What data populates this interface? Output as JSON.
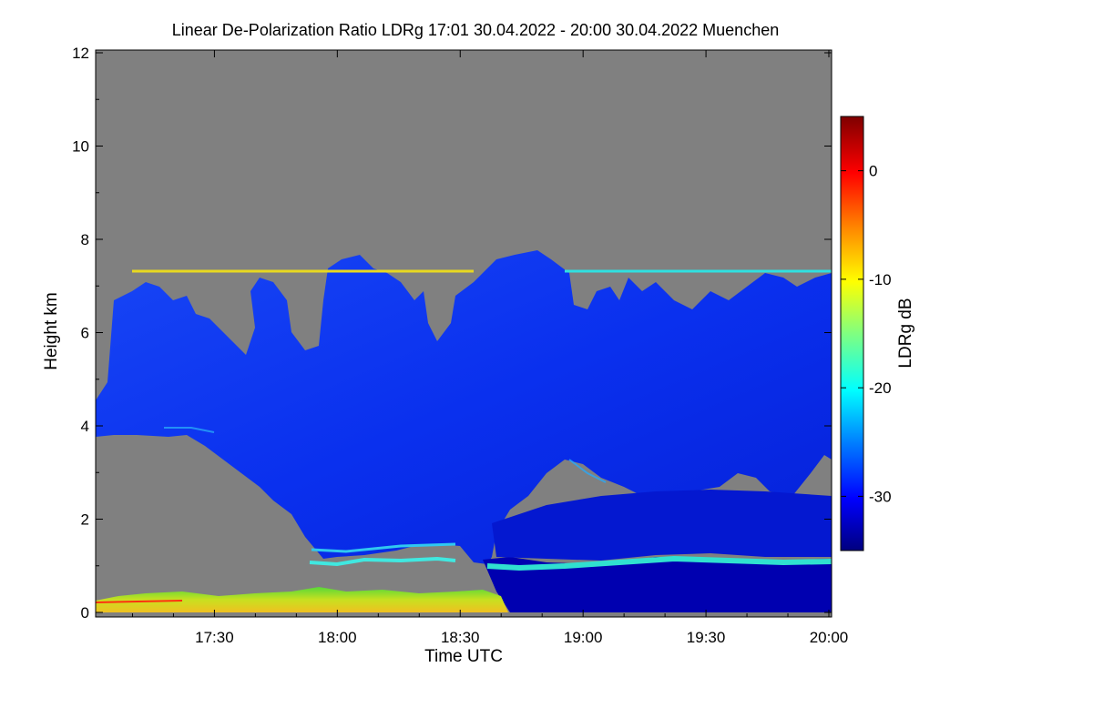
{
  "chart_data": {
    "type": "heatmap",
    "title": "Linear De-Polarization Ratio LDRg   17:01 30.04.2022 - 20:00 30.04.2022 Muenchen",
    "xlabel": "Time UTC",
    "ylabel": "Height km",
    "x_range": [
      "17:01",
      "20:00"
    ],
    "y_range": [
      0,
      12
    ],
    "x_ticks": [
      "17:30",
      "18:00",
      "18:30",
      "19:00",
      "19:30",
      "20:00"
    ],
    "y_ticks": [
      "0",
      "2",
      "4",
      "6",
      "8",
      "10",
      "12"
    ],
    "colorbar": {
      "label": "LDRg dB",
      "range": [
        -35,
        5
      ],
      "ticks": [
        "0",
        "-10",
        "-20",
        "-30"
      ],
      "colors": [
        "#00007f",
        "#0000ff",
        "#0080ff",
        "#00ffff",
        "#80ff80",
        "#ffff00",
        "#ff8000",
        "#ff0000",
        "#7f0000"
      ]
    },
    "no_signal_color": "#808080",
    "features": {
      "cirrus_top_km": [
        5.5,
        7.3
      ],
      "cirrus_base_km": [
        1.2,
        4.5
      ],
      "persistent_layer_km": 7.3,
      "aerosol_top_km": 1.1,
      "boundary_layer_depolarized_km": [
        0,
        0.4
      ]
    }
  }
}
